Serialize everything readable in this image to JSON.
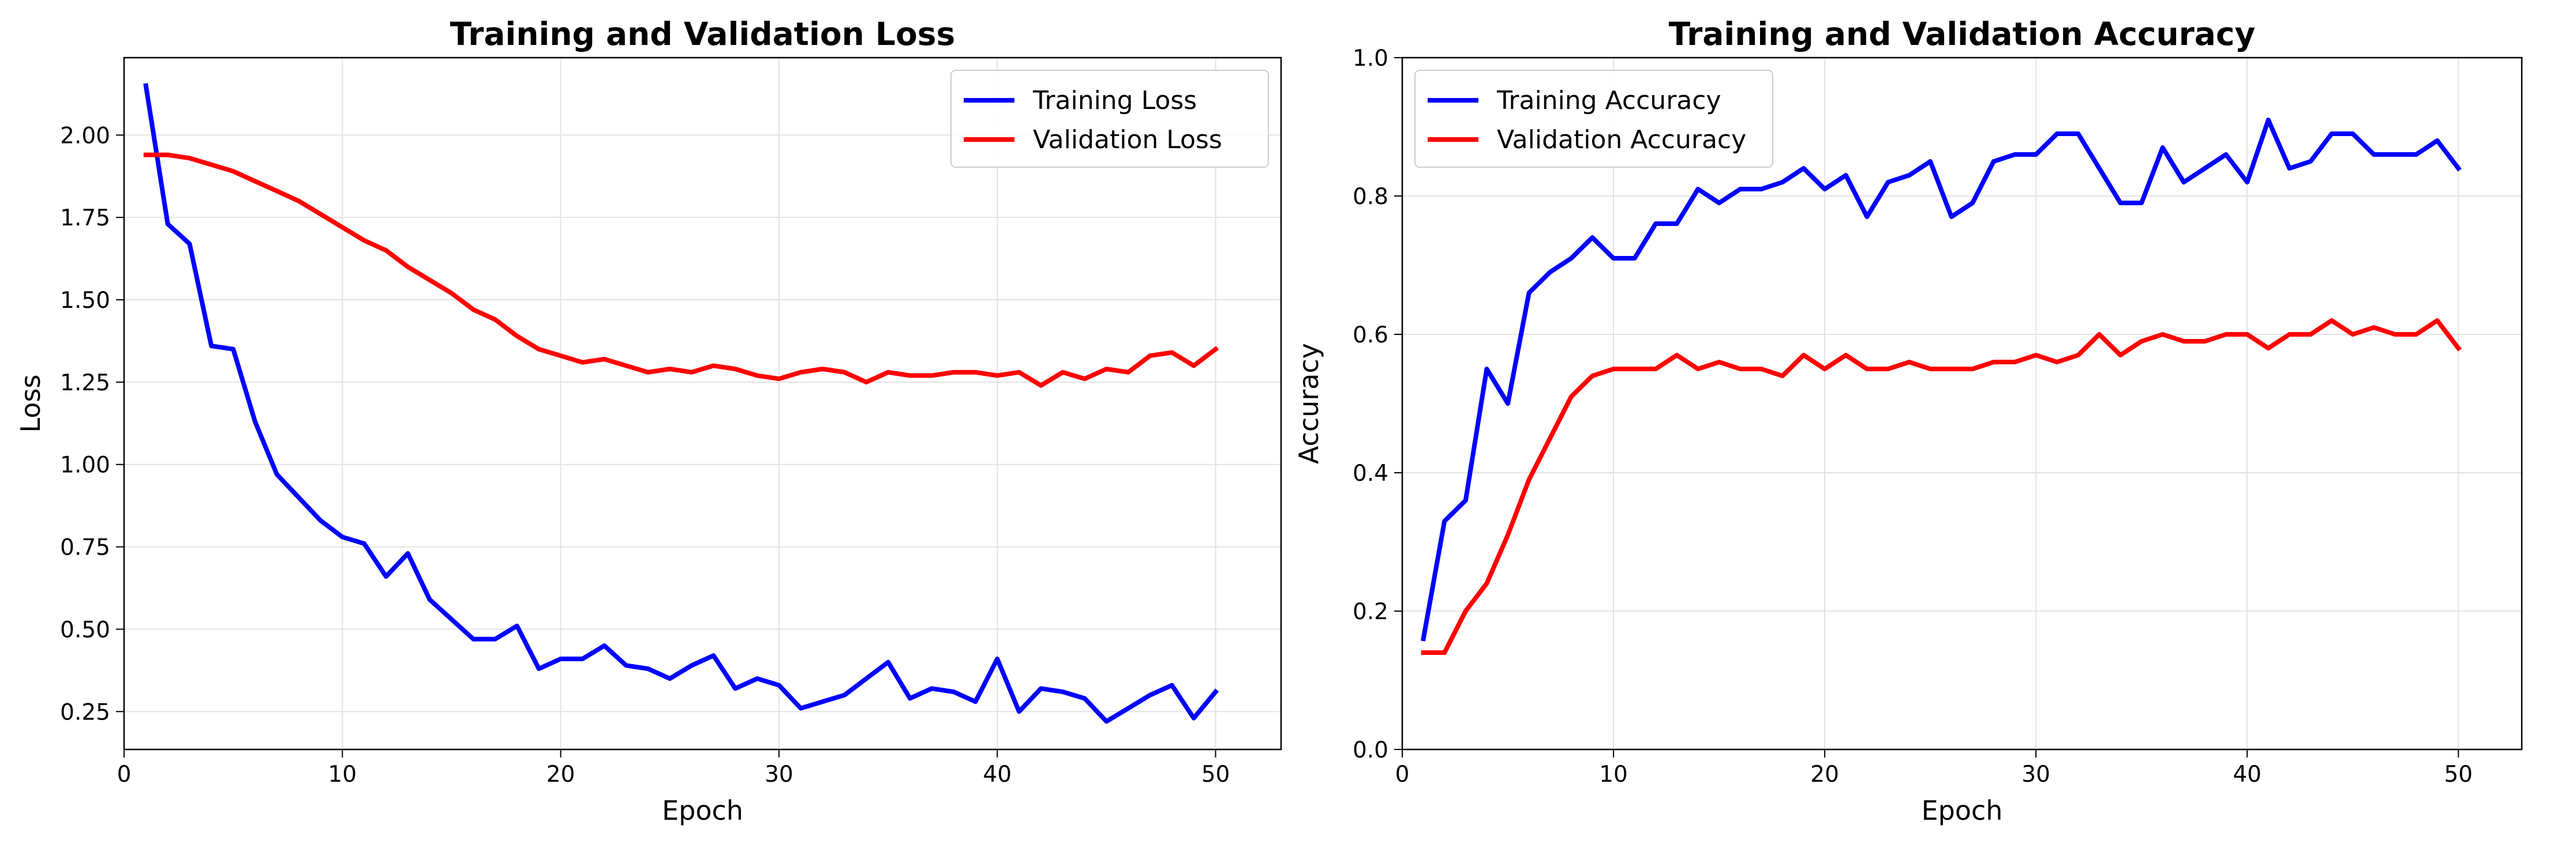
{
  "chart_data": [
    {
      "type": "line",
      "title": "Training and Validation Loss",
      "xlabel": "Epoch",
      "ylabel": "Loss",
      "xlim": [
        0,
        53
      ],
      "ylim": [
        0.135,
        2.235
      ],
      "xticks": [
        0,
        10,
        20,
        30,
        40,
        50
      ],
      "xtick_labels": [
        "0",
        "10",
        "20",
        "30",
        "40",
        "50"
      ],
      "yticks": [
        0.25,
        0.5,
        0.75,
        1.0,
        1.25,
        1.5,
        1.75,
        2.0
      ],
      "ytick_labels": [
        "0.25",
        "0.50",
        "0.75",
        "1.00",
        "1.25",
        "1.50",
        "1.75",
        "2.00"
      ],
      "grid": true,
      "legend": "top-right",
      "x": [
        1,
        2,
        3,
        4,
        5,
        6,
        7,
        8,
        9,
        10,
        11,
        12,
        13,
        14,
        15,
        16,
        17,
        18,
        19,
        20,
        21,
        22,
        23,
        24,
        25,
        26,
        27,
        28,
        29,
        30,
        31,
        32,
        33,
        34,
        35,
        36,
        37,
        38,
        39,
        40,
        41,
        42,
        43,
        44,
        45,
        46,
        47,
        48,
        49,
        50
      ],
      "series": [
        {
          "name": "Training Loss",
          "color": "#0000ff",
          "values": [
            2.15,
            1.73,
            1.67,
            1.36,
            1.35,
            1.13,
            0.97,
            0.9,
            0.83,
            0.78,
            0.76,
            0.66,
            0.73,
            0.59,
            0.53,
            0.47,
            0.47,
            0.51,
            0.38,
            0.41,
            0.41,
            0.45,
            0.39,
            0.38,
            0.35,
            0.39,
            0.42,
            0.32,
            0.35,
            0.33,
            0.26,
            0.28,
            0.3,
            0.35,
            0.4,
            0.29,
            0.32,
            0.31,
            0.28,
            0.41,
            0.25,
            0.32,
            0.31,
            0.29,
            0.22,
            0.26,
            0.3,
            0.33,
            0.23,
            0.31
          ]
        },
        {
          "name": "Validation Loss",
          "color": "#ff0000",
          "values": [
            1.94,
            1.94,
            1.93,
            1.91,
            1.89,
            1.86,
            1.83,
            1.8,
            1.76,
            1.72,
            1.68,
            1.65,
            1.6,
            1.56,
            1.52,
            1.47,
            1.44,
            1.39,
            1.35,
            1.33,
            1.31,
            1.32,
            1.3,
            1.28,
            1.29,
            1.28,
            1.3,
            1.29,
            1.27,
            1.26,
            1.28,
            1.29,
            1.28,
            1.25,
            1.28,
            1.27,
            1.27,
            1.28,
            1.28,
            1.27,
            1.28,
            1.24,
            1.28,
            1.26,
            1.29,
            1.28,
            1.33,
            1.34,
            1.3,
            1.35
          ]
        }
      ]
    },
    {
      "type": "line",
      "title": "Training and Validation Accuracy",
      "xlabel": "Epoch",
      "ylabel": "Accuracy",
      "xlim": [
        0,
        53
      ],
      "ylim": [
        0,
        1
      ],
      "xticks": [
        0,
        10,
        20,
        30,
        40,
        50
      ],
      "xtick_labels": [
        "0",
        "10",
        "20",
        "30",
        "40",
        "50"
      ],
      "yticks": [
        0.0,
        0.2,
        0.4,
        0.6,
        0.8,
        1.0
      ],
      "ytick_labels": [
        "0.0",
        "0.2",
        "0.4",
        "0.6",
        "0.8",
        "1.0"
      ],
      "grid": true,
      "legend": "top-left",
      "x": [
        1,
        2,
        3,
        4,
        5,
        6,
        7,
        8,
        9,
        10,
        11,
        12,
        13,
        14,
        15,
        16,
        17,
        18,
        19,
        20,
        21,
        22,
        23,
        24,
        25,
        26,
        27,
        28,
        29,
        30,
        31,
        32,
        33,
        34,
        35,
        36,
        37,
        38,
        39,
        40,
        41,
        42,
        43,
        44,
        45,
        46,
        47,
        48,
        49,
        50
      ],
      "series": [
        {
          "name": "Training Accuracy",
          "color": "#0000ff",
          "values": [
            0.16,
            0.33,
            0.36,
            0.55,
            0.5,
            0.66,
            0.69,
            0.71,
            0.74,
            0.71,
            0.71,
            0.76,
            0.76,
            0.81,
            0.79,
            0.81,
            0.81,
            0.82,
            0.84,
            0.81,
            0.83,
            0.77,
            0.82,
            0.83,
            0.85,
            0.77,
            0.79,
            0.85,
            0.86,
            0.86,
            0.89,
            0.89,
            0.84,
            0.79,
            0.79,
            0.87,
            0.82,
            0.84,
            0.86,
            0.82,
            0.91,
            0.84,
            0.85,
            0.89,
            0.89,
            0.86,
            0.86,
            0.86,
            0.88,
            0.84
          ]
        },
        {
          "name": "Validation Accuracy",
          "color": "#ff0000",
          "values": [
            0.14,
            0.14,
            0.2,
            0.24,
            0.31,
            0.39,
            0.45,
            0.51,
            0.54,
            0.55,
            0.55,
            0.55,
            0.57,
            0.55,
            0.56,
            0.55,
            0.55,
            0.54,
            0.57,
            0.55,
            0.57,
            0.55,
            0.55,
            0.56,
            0.55,
            0.55,
            0.55,
            0.56,
            0.56,
            0.57,
            0.56,
            0.57,
            0.6,
            0.57,
            0.59,
            0.6,
            0.59,
            0.59,
            0.6,
            0.6,
            0.58,
            0.6,
            0.6,
            0.62,
            0.6,
            0.61,
            0.6,
            0.6,
            0.62,
            0.58
          ]
        }
      ]
    }
  ]
}
